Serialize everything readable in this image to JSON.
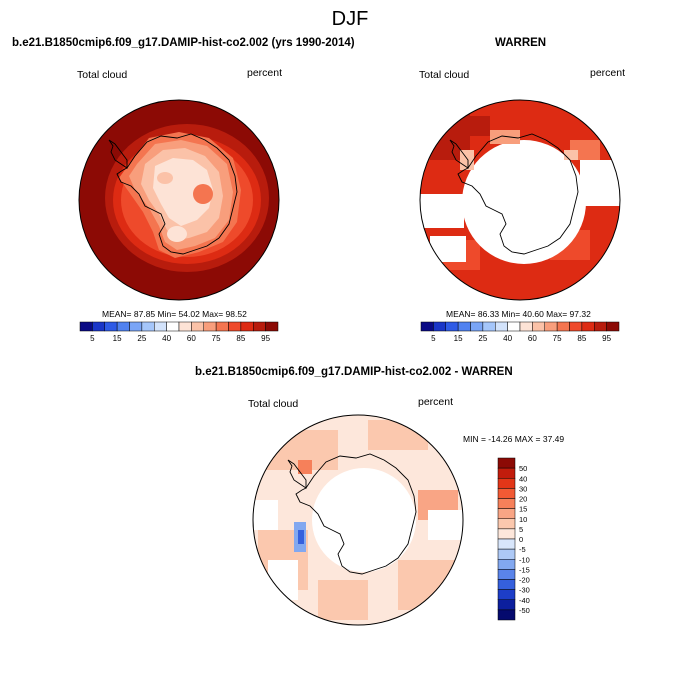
{
  "page": {
    "title": "DJF"
  },
  "panels": {
    "model": {
      "header": "b.e21.B1850cmip6.f09_g17.DAMIP-hist-co2.002 (yrs 1990-2014)",
      "var_label": "Total cloud",
      "units": "percent",
      "stats": "MEAN=  87.85  Min=  54.02  Max=  98.52"
    },
    "obs": {
      "header": "WARREN",
      "var_label": "Total cloud",
      "units": "percent",
      "stats": "MEAN=  86.33  Min=  40.60  Max=  97.32"
    },
    "diff": {
      "header": "b.e21.B1850cmip6.f09_g17.DAMIP-hist-co2.002 - WARREN",
      "var_label": "Total cloud",
      "units": "percent",
      "stats": "MIN = -14.26 MAX =  37.49"
    }
  },
  "chart_data": [
    {
      "type": "heatmap",
      "title": "b.e21.B1850cmip6.f09_g17.DAMIP-hist-co2.002 (yrs 1990-2014)",
      "variable": "Total cloud",
      "units": "percent",
      "projection": "south polar stereographic",
      "mean": 87.85,
      "min": 54.02,
      "max": 98.52,
      "colorbar": {
        "labels": [
          "5",
          "15",
          "25",
          "40",
          "60",
          "75",
          "85",
          "95"
        ],
        "colors": [
          "#0a0a85",
          "#1a36c8",
          "#2f5be6",
          "#5182f0",
          "#7aa5f6",
          "#a5c6fa",
          "#d3e3fb",
          "#ffffff",
          "#fde3d6",
          "#fbc2a8",
          "#f89e7c",
          "#f47550",
          "#ee4a2b",
          "#dd2b13",
          "#b81c0d",
          "#8c0a05"
        ]
      }
    },
    {
      "type": "heatmap",
      "title": "WARREN",
      "variable": "Total cloud",
      "units": "percent",
      "projection": "south polar stereographic",
      "mean": 86.33,
      "min": 40.6,
      "max": 97.32,
      "colorbar": {
        "labels": [
          "5",
          "15",
          "25",
          "40",
          "60",
          "75",
          "85",
          "95"
        ],
        "colors": [
          "#0a0a85",
          "#1a36c8",
          "#2f5be6",
          "#5182f0",
          "#7aa5f6",
          "#a5c6fa",
          "#d3e3fb",
          "#ffffff",
          "#fde3d6",
          "#fbc2a8",
          "#f89e7c",
          "#f47550",
          "#ee4a2b",
          "#dd2b13",
          "#b81c0d",
          "#8c0a05"
        ]
      }
    },
    {
      "type": "heatmap",
      "title": "b.e21.B1850cmip6.f09_g17.DAMIP-hist-co2.002 - WARREN",
      "variable": "Total cloud",
      "units": "percent",
      "projection": "south polar stereographic",
      "min": -14.26,
      "max": 37.49,
      "colorbar": {
        "labels": [
          "50",
          "40",
          "30",
          "20",
          "15",
          "10",
          "5",
          "0",
          "-5",
          "-10",
          "-15",
          "-20",
          "-30",
          "-40",
          "-50"
        ],
        "colors": [
          "#8c0a05",
          "#c21c0c",
          "#e23618",
          "#f25a34",
          "#f6805a",
          "#f9a585",
          "#fbc8ae",
          "#fde7db",
          "#d8e6fb",
          "#adc9f6",
          "#82a8f0",
          "#5a84ea",
          "#3560dd",
          "#1d3ec8",
          "#0c1f9e",
          "#050a6e"
        ]
      }
    }
  ]
}
